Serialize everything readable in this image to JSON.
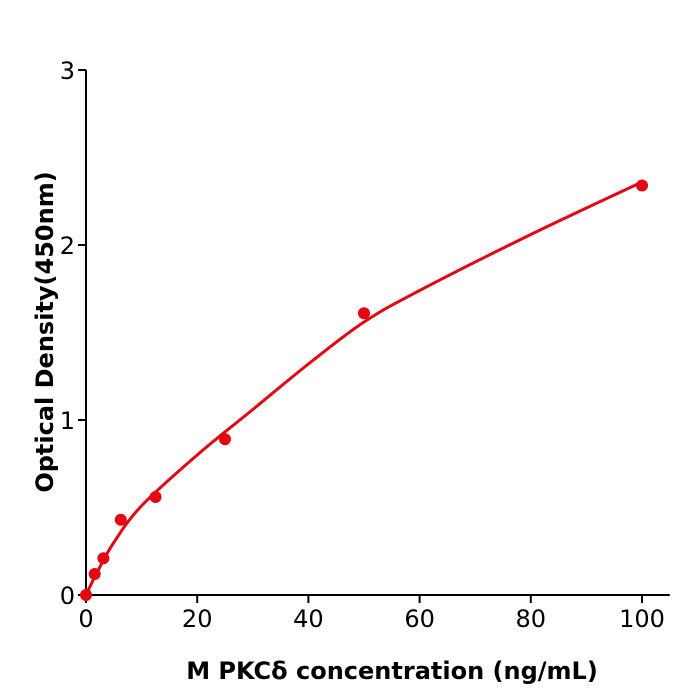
{
  "chart_data": {
    "type": "scatter",
    "title": "",
    "xlabel": "M  PKCδ concentration (ng/mL)",
    "ylabel": "Optical Density(450nm)",
    "xlim": [
      0,
      105
    ],
    "ylim": [
      0,
      3
    ],
    "xticks": [
      0,
      20,
      40,
      60,
      80,
      100
    ],
    "yticks": [
      0,
      1,
      2,
      3
    ],
    "grid": false,
    "color": "#e30613",
    "points": [
      {
        "x": 0,
        "y": 0.0
      },
      {
        "x": 1.56,
        "y": 0.12
      },
      {
        "x": 3.125,
        "y": 0.21
      },
      {
        "x": 6.25,
        "y": 0.43
      },
      {
        "x": 12.5,
        "y": 0.56
      },
      {
        "x": 25,
        "y": 0.89
      },
      {
        "x": 50,
        "y": 1.61
      },
      {
        "x": 100,
        "y": 2.34
      }
    ],
    "fit_curve": [
      [
        0,
        0
      ],
      [
        2,
        0.13
      ],
      [
        5,
        0.3
      ],
      [
        10,
        0.51
      ],
      [
        20,
        0.8
      ],
      [
        30,
        1.06
      ],
      [
        40,
        1.32
      ],
      [
        50,
        1.56
      ],
      [
        60,
        1.74
      ],
      [
        80,
        2.06
      ],
      [
        100,
        2.36
      ]
    ]
  }
}
